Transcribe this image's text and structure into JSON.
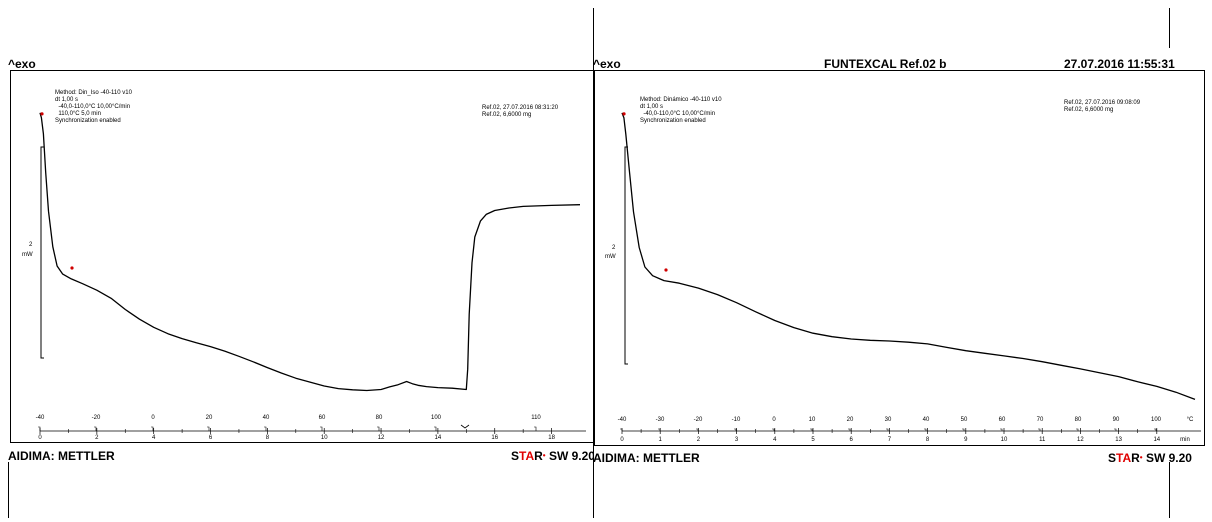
{
  "left": {
    "header": {
      "exo": "^exo"
    },
    "method": [
      "Method: Din_Iso -40-110 v10",
      "dt 1,00 s",
      "  -40,0-110,0°C 10,00°C/min",
      "  110,0°C 5,0 min",
      "Synchronization enabled"
    ],
    "ref": [
      "Ref.02, 27.07.2016 08:31:20",
      "Ref.02, 6,6000 mg"
    ],
    "scale": {
      "value": "2",
      "unit": "mW"
    },
    "footer": {
      "lab": "AIDIMA: METTLER",
      "star_s": "S",
      "star_ta": "TA",
      "star_r": "R",
      "star_dot": "•",
      "star_rest": " SW 9.20"
    }
  },
  "right": {
    "header": {
      "exo": "^exo",
      "title": "FUNTEXCAL Ref.02 b",
      "datetime": "27.07.2016 11:55:31"
    },
    "method": [
      "Method: Dinámico -40-110 v10",
      "dt 1,00 s",
      "  -40,0-110,0°C 10,00°C/min",
      "Synchronization enabled"
    ],
    "ref": [
      "Ref.02, 27.07.2016 09:08:09",
      "Ref.02, 6,6000 mg"
    ],
    "scale": {
      "value": "2",
      "unit": "mW"
    },
    "footer": {
      "lab": "AIDIMA: METTLER",
      "star_s": "S",
      "star_ta": "TA",
      "star_r": "R",
      "star_dot": "•",
      "star_rest": " SW 9.20"
    }
  },
  "chart_data": [
    {
      "type": "line",
      "title": "",
      "temp_ticks": [
        "-40",
        "-20",
        "0",
        "20",
        "40",
        "60",
        "80",
        "100",
        "110"
      ],
      "time_ticks": [
        "0",
        "2",
        "4",
        "6",
        "8",
        "10",
        "12",
        "14",
        "16",
        "18"
      ],
      "time_unit": "",
      "temp_unit": "",
      "xlim_time_min": [
        0,
        19
      ],
      "series": [
        {
          "x": [
            0,
            0.05,
            0.12,
            0.2,
            0.3,
            0.45,
            0.6,
            0.8,
            1.0,
            1.1,
            1.5,
            2,
            2.5,
            3,
            3.5,
            4,
            4.5,
            5,
            5.5,
            6,
            6.5,
            7,
            7.5,
            8,
            8.5,
            9,
            9.5,
            10,
            10.5,
            11,
            11.5,
            12,
            12.3,
            12.6,
            12.9,
            13.1,
            13.3,
            13.6,
            14,
            14.5,
            15,
            15.05,
            15.1,
            15.2,
            15.3,
            15.5,
            15.7,
            16,
            16.5,
            17,
            18,
            19
          ],
          "y": [
            7.45,
            7.3,
            6.8,
            5.6,
            4.4,
            3.3,
            2.7,
            2.45,
            2.35,
            2.3,
            2.15,
            1.95,
            1.7,
            1.35,
            1.05,
            0.8,
            0.6,
            0.45,
            0.32,
            0.2,
            0.06,
            -0.1,
            -0.27,
            -0.45,
            -0.62,
            -0.78,
            -0.9,
            -1.02,
            -1.1,
            -1.14,
            -1.16,
            -1.13,
            -1.05,
            -0.98,
            -0.88,
            -0.95,
            -1.0,
            -1.04,
            -1.07,
            -1.09,
            -1.13,
            -0.5,
            1.2,
            2.8,
            3.6,
            4.1,
            4.3,
            4.42,
            4.5,
            4.55,
            4.58,
            4.6
          ]
        }
      ]
    },
    {
      "type": "line",
      "title": "FUNTEXCAL Ref.02 b",
      "temp_ticks": [
        "-40",
        "-30",
        "-20",
        "-10",
        "0",
        "10",
        "20",
        "30",
        "40",
        "50",
        "60",
        "70",
        "80",
        "90",
        "100",
        "°C"
      ],
      "time_ticks": [
        "0",
        "1",
        "2",
        "3",
        "4",
        "5",
        "6",
        "7",
        "8",
        "9",
        "10",
        "11",
        "12",
        "13",
        "14",
        "min"
      ],
      "time_unit": "min",
      "temp_unit": "°C",
      "xlim_time_min": [
        0,
        15
      ],
      "series": [
        {
          "x": [
            0,
            0.05,
            0.1,
            0.2,
            0.3,
            0.45,
            0.6,
            0.8,
            1.0,
            1.1,
            1.5,
            2,
            2.5,
            3,
            3.5,
            4,
            4.5,
            5,
            5.5,
            6,
            6.5,
            7,
            7.5,
            8,
            8.5,
            9,
            9.5,
            10,
            10.5,
            11,
            11.5,
            12,
            12.5,
            13,
            13.5,
            14,
            14.5,
            15
          ],
          "y": [
            7.45,
            7.3,
            6.8,
            5.6,
            4.4,
            3.3,
            2.7,
            2.43,
            2.33,
            2.28,
            2.2,
            2.05,
            1.85,
            1.6,
            1.32,
            1.05,
            0.83,
            0.66,
            0.55,
            0.48,
            0.44,
            0.42,
            0.38,
            0.33,
            0.22,
            0.12,
            0.04,
            -0.04,
            -0.12,
            -0.22,
            -0.33,
            -0.44,
            -0.56,
            -0.68,
            -0.84,
            -0.98,
            -1.16,
            -1.38
          ]
        }
      ]
    }
  ]
}
